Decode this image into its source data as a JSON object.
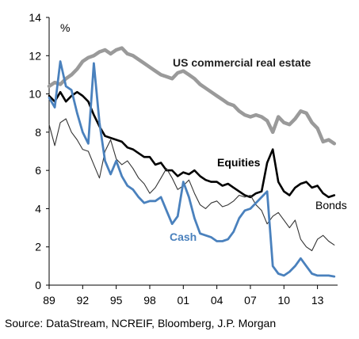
{
  "chart_data": {
    "type": "line",
    "ylabel": "%",
    "ylim": [
      0,
      14
    ],
    "yticks": [
      0,
      2,
      4,
      6,
      8,
      10,
      12,
      14
    ],
    "xlim": [
      1989,
      2014.8
    ],
    "xticks": [
      {
        "x": 1989,
        "label": "89"
      },
      {
        "x": 1992,
        "label": "92"
      },
      {
        "x": 1995,
        "label": "95"
      },
      {
        "x": 1998,
        "label": "98"
      },
      {
        "x": 2001,
        "label": "01"
      },
      {
        "x": 2004,
        "label": "04"
      },
      {
        "x": 2007,
        "label": "07"
      },
      {
        "x": 2010,
        "label": "10"
      },
      {
        "x": 2013,
        "label": "13"
      }
    ],
    "grid": false,
    "legend": "inline labels",
    "series": [
      {
        "name": "US commercial real estate",
        "color": "#9a9a9a",
        "x": [
          1989,
          1989.5,
          1990,
          1990.5,
          1991,
          1991.5,
          1992,
          1992.5,
          1993,
          1993.5,
          1994,
          1994.5,
          1995,
          1995.5,
          1996,
          1996.5,
          1997,
          1997.5,
          1998,
          1998.5,
          1999,
          1999.5,
          2000,
          2000.5,
          2001,
          2001.5,
          2002,
          2002.5,
          2003,
          2003.5,
          2004,
          2004.5,
          2005,
          2005.5,
          2006,
          2006.5,
          2007,
          2007.5,
          2008,
          2008.5,
          2009,
          2009.5,
          2010,
          2010.5,
          2011,
          2011.5,
          2012,
          2012.5,
          2013,
          2013.5,
          2014,
          2014.5
        ],
        "values": [
          10.4,
          10.6,
          10.5,
          10.8,
          11.0,
          11.3,
          11.7,
          11.9,
          12.0,
          12.2,
          12.3,
          12.1,
          12.3,
          12.4,
          12.1,
          12.0,
          11.8,
          11.6,
          11.4,
          11.2,
          11.0,
          10.9,
          10.8,
          11.1,
          11.2,
          11.0,
          10.8,
          10.5,
          10.3,
          10.1,
          9.9,
          9.7,
          9.5,
          9.4,
          9.1,
          8.9,
          8.8,
          8.9,
          8.8,
          8.6,
          8.0,
          8.8,
          8.5,
          8.4,
          8.7,
          9.1,
          9.0,
          8.5,
          8.2,
          7.5,
          7.6,
          7.4
        ]
      },
      {
        "name": "Equities",
        "color": "#000000",
        "x": [
          1989,
          1989.5,
          1990,
          1990.5,
          1991,
          1991.5,
          1992,
          1992.5,
          1993,
          1993.5,
          1994,
          1994.5,
          1995,
          1995.5,
          1996,
          1996.5,
          1997,
          1997.5,
          1998,
          1998.5,
          1999,
          1999.5,
          2000,
          2000.5,
          2001,
          2001.5,
          2002,
          2002.5,
          2003,
          2003.5,
          2004,
          2004.5,
          2005,
          2005.5,
          2006,
          2006.5,
          2007,
          2007.5,
          2008,
          2008.5,
          2009,
          2009.5,
          2010,
          2010.5,
          2011,
          2011.5,
          2012,
          2012.5,
          2013,
          2013.5,
          2014,
          2014.5
        ],
        "values": [
          9.9,
          9.6,
          10.1,
          9.6,
          9.9,
          10.1,
          9.9,
          9.6,
          8.9,
          8.3,
          7.8,
          7.7,
          7.6,
          7.5,
          7.2,
          7.1,
          6.9,
          6.7,
          6.7,
          6.3,
          6.4,
          6.0,
          6.0,
          5.7,
          5.9,
          5.8,
          6.0,
          5.7,
          5.5,
          5.4,
          5.4,
          5.2,
          5.3,
          5.1,
          4.9,
          4.7,
          4.6,
          4.8,
          4.9,
          6.4,
          7.1,
          5.4,
          4.9,
          4.7,
          5.1,
          5.3,
          5.4,
          5.1,
          5.2,
          4.8,
          4.6,
          4.7
        ]
      },
      {
        "name": "Bonds",
        "color": "#333333",
        "x": [
          1989,
          1989.5,
          1990,
          1990.5,
          1991,
          1991.5,
          1992,
          1992.5,
          1993,
          1993.5,
          1994,
          1994.5,
          1995,
          1995.5,
          1996,
          1996.5,
          1997,
          1997.5,
          1998,
          1998.5,
          1999,
          1999.5,
          2000,
          2000.5,
          2001,
          2001.5,
          2002,
          2002.5,
          2003,
          2003.5,
          2004,
          2004.5,
          2005,
          2005.5,
          2006,
          2006.5,
          2007,
          2007.5,
          2008,
          2008.5,
          2009,
          2009.5,
          2010,
          2010.5,
          2011,
          2011.5,
          2012,
          2012.5,
          2013,
          2013.5,
          2014,
          2014.5
        ],
        "values": [
          8.4,
          7.3,
          8.5,
          8.7,
          8.0,
          7.6,
          7.1,
          7.0,
          6.3,
          5.6,
          7.0,
          7.6,
          6.6,
          6.3,
          6.5,
          6.1,
          5.6,
          5.3,
          4.8,
          5.1,
          5.6,
          6.1,
          5.6,
          5.0,
          5.2,
          5.5,
          4.8,
          4.2,
          4.0,
          4.3,
          4.4,
          4.1,
          4.2,
          4.4,
          4.7,
          4.6,
          4.7,
          4.2,
          3.9,
          3.2,
          3.6,
          3.8,
          3.4,
          3.0,
          3.4,
          2.4,
          2.0,
          1.8,
          2.4,
          2.6,
          2.3,
          2.1
        ]
      },
      {
        "name": "Cash",
        "color": "#4a81bd",
        "x": [
          1989,
          1989.5,
          1990,
          1990.5,
          1991,
          1991.5,
          1992,
          1992.5,
          1993,
          1993.5,
          1994,
          1994.5,
          1995,
          1995.5,
          1996,
          1996.5,
          1997,
          1997.5,
          1998,
          1998.5,
          1999,
          1999.5,
          2000,
          2000.5,
          2001,
          2001.5,
          2002,
          2002.5,
          2003,
          2003.5,
          2004,
          2004.5,
          2005,
          2005.5,
          2006,
          2006.5,
          2007,
          2007.5,
          2008,
          2008.5,
          2009,
          2009.5,
          2010,
          2010.5,
          2011,
          2011.5,
          2012,
          2012.5,
          2013,
          2013.5,
          2014,
          2014.5
        ],
        "values": [
          9.8,
          9.3,
          11.7,
          10.4,
          10.2,
          9.0,
          8.0,
          7.4,
          11.6,
          8.5,
          6.5,
          5.8,
          6.5,
          5.7,
          5.2,
          5.0,
          4.6,
          4.3,
          4.4,
          4.4,
          4.6,
          3.9,
          3.2,
          3.6,
          5.4,
          4.6,
          3.5,
          2.7,
          2.6,
          2.5,
          2.3,
          2.3,
          2.4,
          2.8,
          3.5,
          3.9,
          4.0,
          4.3,
          4.6,
          4.9,
          1.0,
          0.6,
          0.5,
          0.7,
          1.0,
          1.4,
          1.0,
          0.6,
          0.5,
          0.5,
          0.5,
          0.45
        ]
      }
    ],
    "annotations": [
      {
        "text": "US commercial real estate",
        "series": "US commercial real estate"
      },
      {
        "text": "Equities",
        "series": "Equities"
      },
      {
        "text": "Bonds",
        "series": "Bonds"
      },
      {
        "text": "Cash",
        "series": "Cash"
      }
    ]
  },
  "source": "Source: DataStream, NCREIF, Bloomberg, J.P. Morgan"
}
